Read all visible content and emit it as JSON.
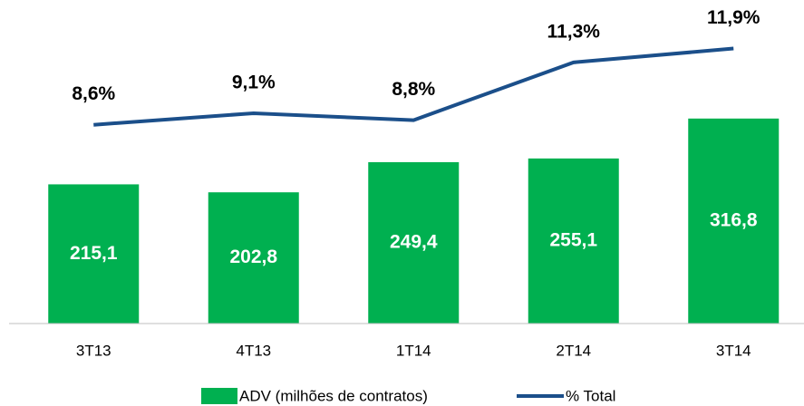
{
  "chart_data": {
    "type": "bar",
    "categories": [
      "3T13",
      "4T13",
      "1T14",
      "2T14",
      "3T14"
    ],
    "series": [
      {
        "name": "ADV (milhões de contratos)",
        "type": "bar",
        "color": "#00b050",
        "values": [
          215.1,
          202.8,
          249.4,
          255.1,
          316.8
        ],
        "value_labels": [
          "215,1",
          "202,8",
          "249,4",
          "255,1",
          "316,8"
        ]
      },
      {
        "name": "% Total",
        "type": "line",
        "axis": "y2",
        "color": "#1b4f8a",
        "values": [
          8.6,
          9.1,
          8.8,
          11.3,
          11.9
        ],
        "value_labels": [
          "8,6%",
          "9,1%",
          "8,8%",
          "11,3%",
          "11,9%"
        ]
      }
    ],
    "ylim": [
      0,
      500
    ],
    "y2lim": [
      0,
      14
    ],
    "legend": "bottom"
  }
}
